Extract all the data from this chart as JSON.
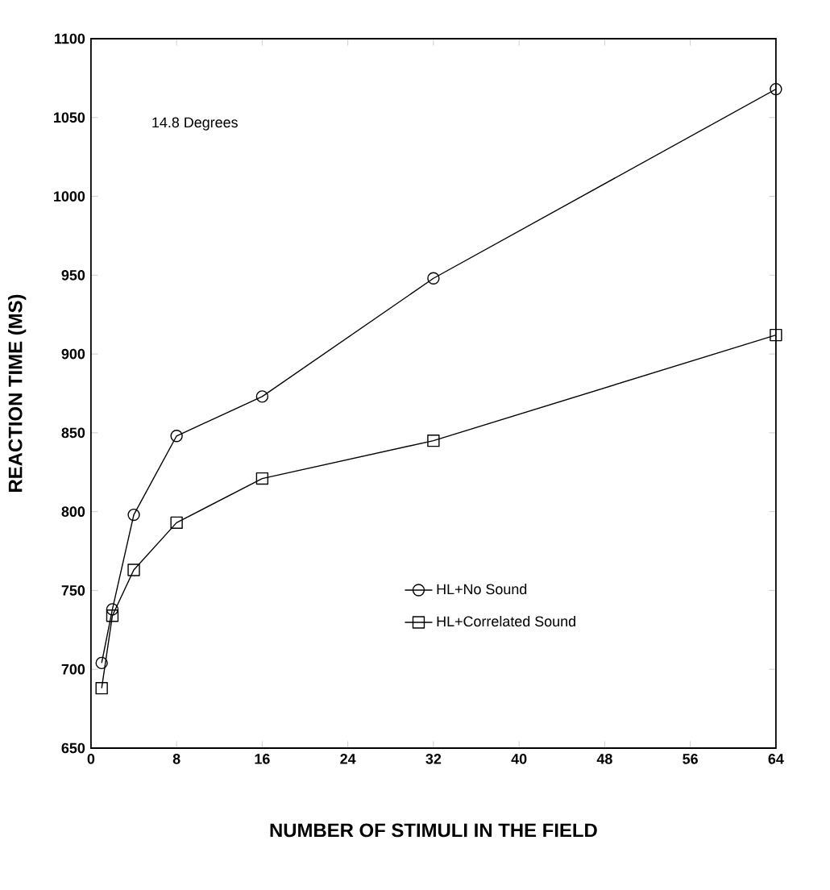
{
  "chart_data": {
    "type": "line",
    "xlabel": "NUMBER OF STIMULI IN THE FIELD",
    "ylabel": "REACTION TIME   (MS)",
    "annotations": [
      "14.8 Degrees"
    ],
    "x": [
      1,
      2,
      4,
      8,
      16,
      32,
      64
    ],
    "series": [
      {
        "name": "HL+No Sound",
        "color": "#000000",
        "marker": "circle",
        "values": [
          704,
          738,
          798,
          848,
          873,
          948,
          1068
        ]
      },
      {
        "name": "HL+Correlated Sound",
        "color": "#000000",
        "marker": "square",
        "values": [
          688,
          734,
          763,
          793,
          821,
          845,
          912
        ]
      }
    ],
    "xlim": [
      0,
      64
    ],
    "ylim": [
      650,
      1100
    ],
    "xticks": [
      0,
      8,
      16,
      24,
      32,
      40,
      48,
      56,
      64
    ],
    "yticks": [
      650,
      700,
      750,
      800,
      850,
      900,
      950,
      1000,
      1050,
      1100
    ],
    "legend": "right",
    "line_style": "solid"
  }
}
